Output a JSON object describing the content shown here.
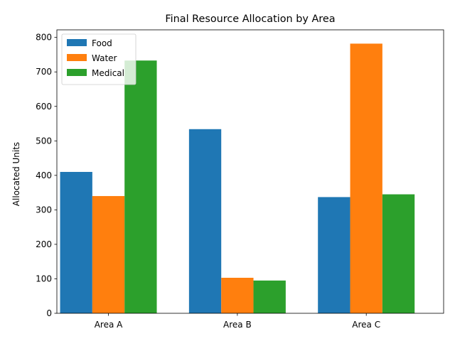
{
  "chart_data": {
    "type": "bar",
    "title": "Final Resource Allocation by Area",
    "xlabel": "",
    "ylabel": "Allocated Units",
    "categories": [
      "Area A",
      "Area B",
      "Area C"
    ],
    "series": [
      {
        "name": "Food",
        "values": [
          410,
          534,
          337
        ],
        "color": "#1f77b4"
      },
      {
        "name": "Water",
        "values": [
          340,
          103,
          782
        ],
        "color": "#ff7f0e"
      },
      {
        "name": "Medical",
        "values": [
          733,
          95,
          345
        ],
        "color": "#2ca02c"
      }
    ],
    "ylim": [
      0,
      822
    ],
    "yticks": [
      0,
      100,
      200,
      300,
      400,
      500,
      600,
      700,
      800
    ],
    "grid": false,
    "legend_position": "top-left"
  }
}
